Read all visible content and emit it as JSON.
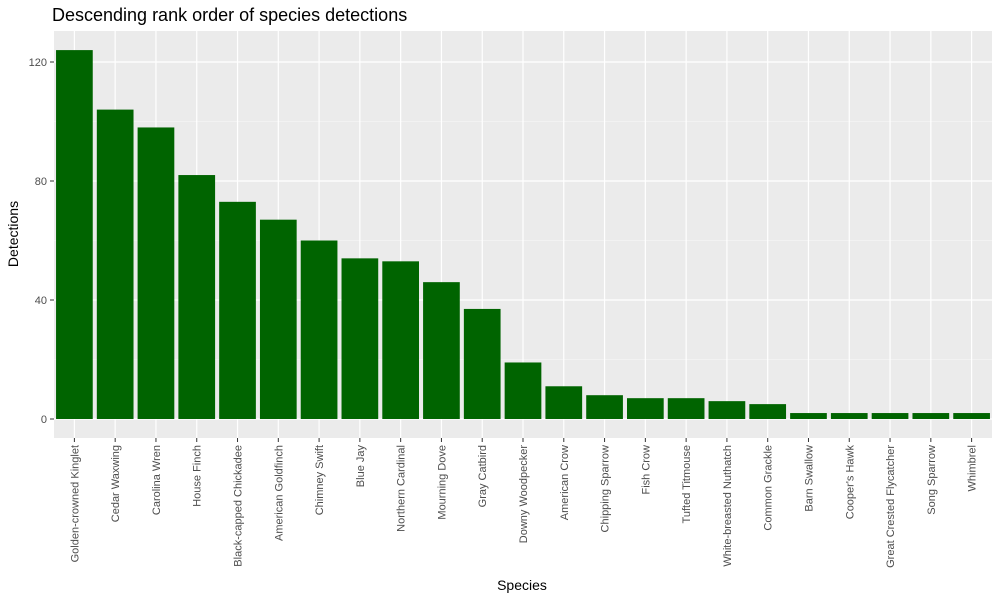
{
  "chart_data": {
    "type": "bar",
    "title": "Descending rank order of species detections",
    "xlabel": "Species",
    "ylabel": "Detections",
    "ylim": [
      0,
      130
    ],
    "yticks": [
      0,
      40,
      80,
      120
    ],
    "grid": true,
    "bar_color": "#006400",
    "panel_color": "#ebebeb",
    "categories": [
      "Golden-crowned Kinglet",
      "Cedar Waxwing",
      "Carolina Wren",
      "House Finch",
      "Black-capped Chickadee",
      "American Goldfinch",
      "Chimney Swift",
      "Blue Jay",
      "Northern Cardinal",
      "Mourning Dove",
      "Gray Catbird",
      "Downy Woodpecker",
      "American Crow",
      "Chipping Sparrow",
      "Fish Crow",
      "Tufted Titmouse",
      "White-breasted Nuthatch",
      "Common Grackle",
      "Barn Swallow",
      "Cooper's Hawk",
      "Great Crested Flycatcher",
      "Song Sparrow",
      "Whimbrel"
    ],
    "values": [
      124,
      104,
      98,
      82,
      73,
      67,
      60,
      54,
      53,
      46,
      37,
      19,
      11,
      8,
      7,
      7,
      6,
      5,
      2,
      2,
      2,
      2,
      2
    ]
  }
}
